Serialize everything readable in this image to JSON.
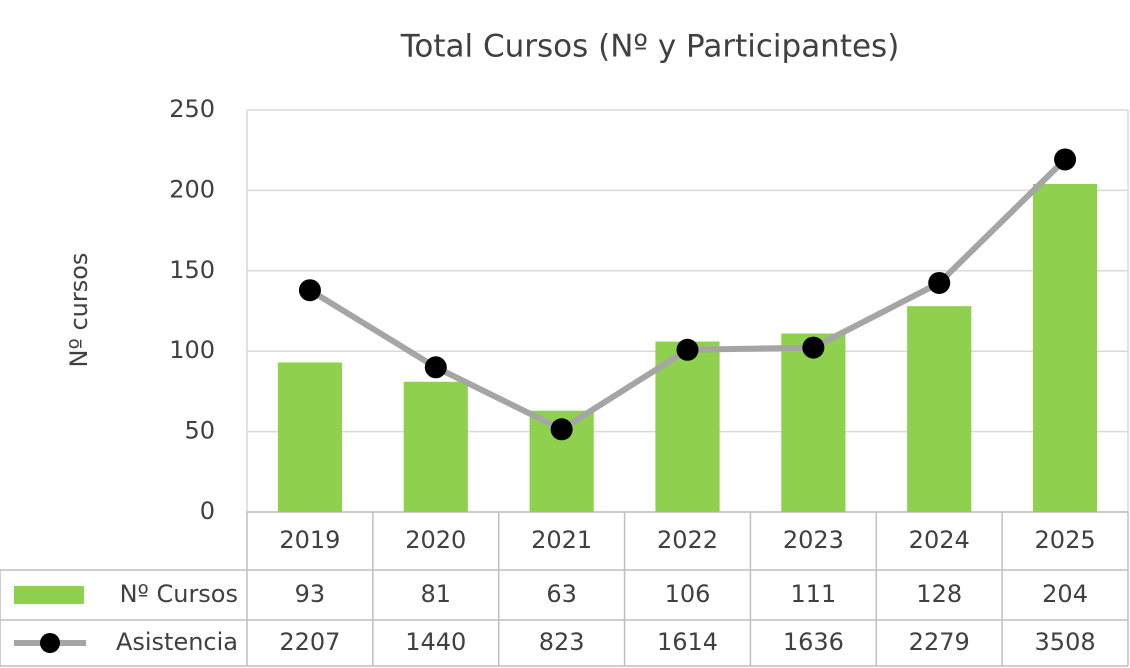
{
  "chart_data": {
    "type": "bar-line",
    "title": "Total Cursos (Nº y Participantes)",
    "y_label": "Nº cursos",
    "categories": [
      "2019",
      "2020",
      "2021",
      "2022",
      "2023",
      "2024",
      "2025"
    ],
    "series": [
      {
        "name": "Nº Cursos",
        "type": "bar",
        "color": "#8fd14f",
        "values": [
          93,
          81,
          63,
          106,
          111,
          128,
          204
        ]
      },
      {
        "name": "Asistencia",
        "type": "line",
        "axis": "y2",
        "color": "#a5a5a5",
        "marker_color": "#000000",
        "values": [
          2207,
          1440,
          823,
          1614,
          1636,
          2279,
          3508
        ]
      }
    ],
    "ylim": [
      0,
      250
    ],
    "yticks": [
      0,
      50,
      100,
      150,
      200,
      250
    ],
    "y2lim": [
      0,
      4000
    ],
    "grid": true,
    "legend": "data-table"
  }
}
